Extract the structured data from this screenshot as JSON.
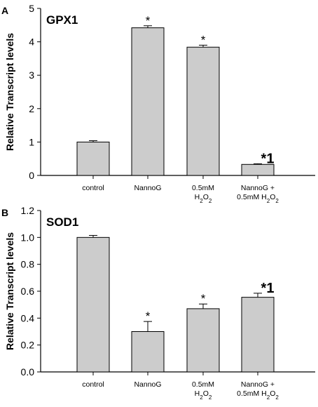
{
  "chart_data": [
    {
      "panel_label": "A",
      "title": "GPX1",
      "type": "bar",
      "ylabel": "Relative Transcript levels",
      "xlabel": "",
      "ylim": [
        0,
        5
      ],
      "yticks": [
        "0",
        "1",
        "2",
        "3",
        "4",
        "5"
      ],
      "categories": [
        [
          "control"
        ],
        [
          "NannoG"
        ],
        [
          "0.5mM",
          "H2O2"
        ],
        [
          "NannoG  +",
          "0.5mM H2O2"
        ]
      ],
      "values": [
        1.0,
        4.42,
        3.84,
        0.33
      ],
      "errors": [
        0.04,
        0.06,
        0.06,
        0.02
      ],
      "annotations": [
        "",
        "*",
        "*",
        "*1"
      ],
      "grid": false,
      "bar_color": "#cccccc"
    },
    {
      "panel_label": "B",
      "title": "SOD1",
      "type": "bar",
      "ylabel": "Relative Transcript levels",
      "xlabel": "",
      "ylim": [
        0,
        1.2
      ],
      "yticks": [
        "0.0",
        "0.2",
        "0.4",
        "0.6",
        "0.8",
        "1.0",
        "1.2"
      ],
      "categories": [
        [
          "control"
        ],
        [
          "NannoG"
        ],
        [
          "0.5mM",
          "H2O2"
        ],
        [
          "NannoG  +",
          "0.5mM H2O2"
        ]
      ],
      "values": [
        1.0,
        0.3,
        0.47,
        0.555
      ],
      "errors": [
        0.015,
        0.075,
        0.035,
        0.03
      ],
      "annotations": [
        "",
        "*",
        "*",
        "*1"
      ],
      "grid": false,
      "bar_color": "#cccccc"
    }
  ]
}
